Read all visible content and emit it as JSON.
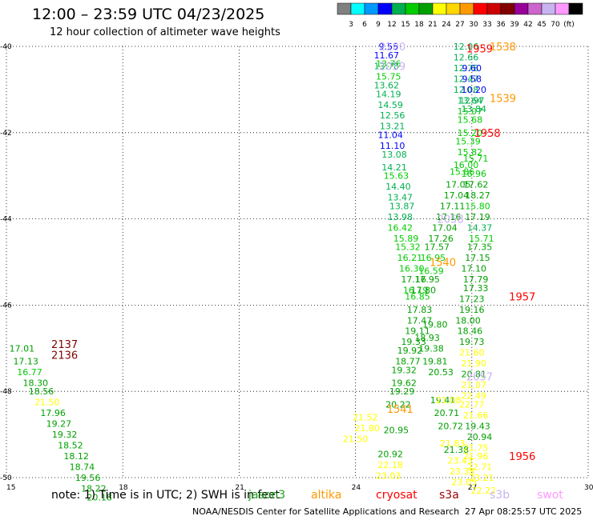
{
  "title": "12:00 – 23:59 UTC 04/23/2025",
  "subtitle": "12 hour collection of altimeter wave heights",
  "note": "note:  1) Time is in UTC; 2) SWH is in feet",
  "footer": {
    "center": "NOAA/NESDIS Center for Satellite Applications and Research",
    "stamp": "27 Apr 08:25:57 UTC 2025"
  },
  "missions": [
    {
      "name": "jason3",
      "label": "jason3",
      "color": "#1fa11f"
    },
    {
      "name": "altika",
      "label": "altika",
      "color": "#ff9900"
    },
    {
      "name": "cryosat",
      "label": "cryosat",
      "color": "#ff0000"
    },
    {
      "name": "s3a",
      "label": "s3a",
      "color": "#990000"
    },
    {
      "name": "s3b",
      "label": "s3b",
      "color": "#c8b4f0"
    },
    {
      "name": "swot",
      "label": "swot",
      "color": "#ff99ff"
    }
  ],
  "colorbar": {
    "colors": [
      "#808080",
      "#00ffff",
      "#0099ff",
      "#0000ff",
      "#00b050",
      "#00cc00",
      "#00a000",
      "#ffff00",
      "#ffd700",
      "#ff9900",
      "#ff0000",
      "#cc0000",
      "#800000",
      "#990099",
      "#cc66cc",
      "#c8b4f0",
      "#ff99ff",
      "#000000"
    ],
    "labels": [
      "3",
      "6",
      "9",
      "12",
      "15",
      "18",
      "21",
      "24",
      "27",
      "30",
      "33",
      "36",
      "39",
      "42",
      "45",
      "70",
      "(ft)"
    ]
  },
  "chart_data": {
    "type": "scatter",
    "title": "12:00 – 23:59 UTC 04/23/2025",
    "subtitle": "12 hour collection of altimeter wave heights",
    "xlim": [
      15,
      30
    ],
    "ylim": [
      -50,
      -40
    ],
    "x_ticks": [
      "15",
      "18",
      "21",
      "24",
      "27",
      "30"
    ],
    "y_ticks": [
      "-40",
      "-42",
      "-44",
      "-46",
      "-48",
      "-50"
    ],
    "grid": true,
    "points": [
      {
        "x": 24.85,
        "y": -40.0,
        "v": "9.55",
        "c": "#0000ff"
      },
      {
        "x": 24.8,
        "y": -40.2,
        "v": "11.67",
        "c": "#0000ff"
      },
      {
        "x": 24.85,
        "y": -40.4,
        "v": "13.76",
        "c": "#00cc00"
      },
      {
        "x": 24.8,
        "y": -40.45,
        "v": "13.78",
        "c": "#00b050"
      },
      {
        "x": 24.85,
        "y": -40.7,
        "v": "15.75",
        "c": "#00cc00"
      },
      {
        "x": 24.8,
        "y": -40.9,
        "v": "13.62",
        "c": "#00b050"
      },
      {
        "x": 24.85,
        "y": -41.1,
        "v": "14.19",
        "c": "#00b050"
      },
      {
        "x": 24.9,
        "y": -41.35,
        "v": "14.59",
        "c": "#00b050"
      },
      {
        "x": 24.95,
        "y": -41.6,
        "v": "12.56",
        "c": "#00b050"
      },
      {
        "x": 24.95,
        "y": -41.85,
        "v": "13.21",
        "c": "#00b050"
      },
      {
        "x": 24.9,
        "y": -42.05,
        "v": "11.04",
        "c": "#0000ff"
      },
      {
        "x": 24.95,
        "y": -42.3,
        "v": "11.10",
        "c": "#0000ff"
      },
      {
        "x": 25.0,
        "y": -42.5,
        "v": "13.08",
        "c": "#00b050"
      },
      {
        "x": 25.0,
        "y": -42.8,
        "v": "14.21",
        "c": "#00b050"
      },
      {
        "x": 25.05,
        "y": -43.0,
        "v": "15.63",
        "c": "#00cc00"
      },
      {
        "x": 25.1,
        "y": -43.25,
        "v": "14.40",
        "c": "#00b050"
      },
      {
        "x": 25.15,
        "y": -43.5,
        "v": "13.47",
        "c": "#00b050"
      },
      {
        "x": 25.2,
        "y": -43.7,
        "v": "13.87",
        "c": "#00b050"
      },
      {
        "x": 25.15,
        "y": -43.95,
        "v": "13.98",
        "c": "#00b050"
      },
      {
        "x": 25.15,
        "y": -44.2,
        "v": "16.42",
        "c": "#00cc00"
      },
      {
        "x": 25.3,
        "y": -44.45,
        "v": "15.89",
        "c": "#00cc00"
      },
      {
        "x": 25.35,
        "y": -44.65,
        "v": "15.32",
        "c": "#00cc00"
      },
      {
        "x": 25.4,
        "y": -44.9,
        "v": "16.21",
        "c": "#00cc00"
      },
      {
        "x": 25.45,
        "y": -45.15,
        "v": "16.30",
        "c": "#00cc00"
      },
      {
        "x": 25.5,
        "y": -45.4,
        "v": "17.16",
        "c": "#00a000"
      },
      {
        "x": 25.55,
        "y": -45.65,
        "v": "16.19",
        "c": "#00cc00"
      },
      {
        "x": 25.6,
        "y": -45.8,
        "v": "16.85",
        "c": "#00cc00"
      },
      {
        "x": 25.65,
        "y": -46.1,
        "v": "17.83",
        "c": "#00a000"
      },
      {
        "x": 25.65,
        "y": -46.35,
        "v": "17.47",
        "c": "#00a000"
      },
      {
        "x": 25.6,
        "y": -46.6,
        "v": "19.11",
        "c": "#00a000"
      },
      {
        "x": 25.5,
        "y": -46.85,
        "v": "19.33",
        "c": "#00a000"
      },
      {
        "x": 25.4,
        "y": -47.05,
        "v": "19.92",
        "c": "#00a000"
      },
      {
        "x": 25.35,
        "y": -47.3,
        "v": "18.77",
        "c": "#00a000"
      },
      {
        "x": 25.25,
        "y": -47.5,
        "v": "19.32",
        "c": "#00a000"
      },
      {
        "x": 25.25,
        "y": -47.8,
        "v": "19.62",
        "c": "#00a000"
      },
      {
        "x": 25.2,
        "y": -48.0,
        "v": "19.29",
        "c": "#00a000"
      },
      {
        "x": 25.1,
        "y": -48.3,
        "v": "20.22",
        "c": "#00a000"
      },
      {
        "x": 25.05,
        "y": -48.9,
        "v": "20.95",
        "c": "#00a000"
      },
      {
        "x": 24.9,
        "y": -49.45,
        "v": "20.92",
        "c": "#00a000"
      },
      {
        "x": 24.9,
        "y": -49.7,
        "v": "22.18",
        "c": "#ffff00"
      },
      {
        "x": 24.85,
        "y": -49.95,
        "v": "23.03",
        "c": "#ffff00"
      },
      {
        "x": 26.05,
        "y": -46.45,
        "v": "19.80",
        "c": "#00a000"
      },
      {
        "x": 25.85,
        "y": -46.75,
        "v": "18.93",
        "c": "#00a000"
      },
      {
        "x": 25.95,
        "y": -47.0,
        "v": "19.38",
        "c": "#00a000"
      },
      {
        "x": 26.05,
        "y": -47.3,
        "v": "19.81",
        "c": "#00a000"
      },
      {
        "x": 26.2,
        "y": -47.55,
        "v": "20.53",
        "c": "#00a000"
      },
      {
        "x": 26.25,
        "y": -48.2,
        "v": "19.41",
        "c": "#00a000"
      },
      {
        "x": 26.35,
        "y": -48.5,
        "v": "20.71",
        "c": "#00a000"
      },
      {
        "x": 26.45,
        "y": -48.8,
        "v": "20.72",
        "c": "#00a000"
      },
      {
        "x": 26.6,
        "y": -49.35,
        "v": "21.38",
        "c": "#00a000"
      },
      {
        "x": 26.7,
        "y": -49.6,
        "v": "23.43",
        "c": "#ffff00"
      },
      {
        "x": 26.75,
        "y": -49.85,
        "v": "23.38",
        "c": "#ffff00"
      },
      {
        "x": 26.8,
        "y": -50.1,
        "v": "23.05",
        "c": "#ffff00"
      },
      {
        "x": 26.85,
        "y": -40.0,
        "v": "12.06",
        "c": "#00b050"
      },
      {
        "x": 26.85,
        "y": -40.25,
        "v": "12.66",
        "c": "#00b050"
      },
      {
        "x": 26.85,
        "y": -40.5,
        "v": "12.78",
        "c": "#00b050"
      },
      {
        "x": 26.85,
        "y": -40.75,
        "v": "12.47",
        "c": "#00b050"
      },
      {
        "x": 26.85,
        "y": -41.0,
        "v": "12.08",
        "c": "#00b050"
      },
      {
        "x": 26.95,
        "y": -41.25,
        "v": "13.64",
        "c": "#00b050"
      },
      {
        "x": 26.95,
        "y": -41.5,
        "v": "15.07",
        "c": "#00cc00"
      },
      {
        "x": 26.95,
        "y": -41.7,
        "v": "15.68",
        "c": "#00cc00"
      },
      {
        "x": 26.95,
        "y": -42.0,
        "v": "15.20",
        "c": "#00cc00"
      },
      {
        "x": 26.9,
        "y": -42.2,
        "v": "15.39",
        "c": "#00cc00"
      },
      {
        "x": 26.95,
        "y": -42.45,
        "v": "15.82",
        "c": "#00cc00"
      },
      {
        "x": 26.85,
        "y": -42.75,
        "v": "16.00",
        "c": "#00cc00"
      },
      {
        "x": 26.75,
        "y": -42.9,
        "v": "15.86",
        "c": "#00cc00"
      },
      {
        "x": 26.65,
        "y": -43.2,
        "v": "17.05",
        "c": "#00a000"
      },
      {
        "x": 26.6,
        "y": -43.45,
        "v": "17.04",
        "c": "#00a000"
      },
      {
        "x": 26.5,
        "y": -43.7,
        "v": "17.11",
        "c": "#00a000"
      },
      {
        "x": 26.4,
        "y": -43.95,
        "v": "17.16",
        "c": "#00a000"
      },
      {
        "x": 26.3,
        "y": -44.2,
        "v": "17.04",
        "c": "#00a000"
      },
      {
        "x": 26.2,
        "y": -44.45,
        "v": "17.26",
        "c": "#00a000"
      },
      {
        "x": 26.1,
        "y": -44.65,
        "v": "17.57",
        "c": "#00a000"
      },
      {
        "x": 26.0,
        "y": -44.9,
        "v": "16.95",
        "c": "#00cc00"
      },
      {
        "x": 25.95,
        "y": -45.2,
        "v": "16.59",
        "c": "#00cc00"
      },
      {
        "x": 25.85,
        "y": -45.4,
        "v": "17.95",
        "c": "#00a000"
      },
      {
        "x": 25.75,
        "y": -45.65,
        "v": "17.80",
        "c": "#00a000"
      },
      {
        "x": 27.0,
        "y": -40.5,
        "v": "9.60",
        "c": "#0000ff"
      },
      {
        "x": 27.0,
        "y": -40.75,
        "v": "9.58",
        "c": "#0000ff"
      },
      {
        "x": 27.05,
        "y": -41.0,
        "v": "10.20",
        "c": "#0000ff"
      },
      {
        "x": 27.0,
        "y": -41.25,
        "v": "12.97",
        "c": "#00b050"
      },
      {
        "x": 27.05,
        "y": -41.45,
        "v": "13.84",
        "c": "#00b050"
      },
      {
        "x": 27.1,
        "y": -42.6,
        "v": "15.71",
        "c": "#00cc00"
      },
      {
        "x": 27.05,
        "y": -42.95,
        "v": "16.96",
        "c": "#00cc00"
      },
      {
        "x": 27.1,
        "y": -43.2,
        "v": "17.62",
        "c": "#00a000"
      },
      {
        "x": 27.15,
        "y": -43.45,
        "v": "18.27",
        "c": "#00a000"
      },
      {
        "x": 27.15,
        "y": -43.7,
        "v": "15.80",
        "c": "#00cc00"
      },
      {
        "x": 27.15,
        "y": -43.95,
        "v": "17.19",
        "c": "#00a000"
      },
      {
        "x": 27.2,
        "y": -44.2,
        "v": "14.37",
        "c": "#00b050"
      },
      {
        "x": 27.25,
        "y": -44.45,
        "v": "15.71",
        "c": "#00cc00"
      },
      {
        "x": 27.2,
        "y": -44.65,
        "v": "17.35",
        "c": "#00a000"
      },
      {
        "x": 27.15,
        "y": -44.9,
        "v": "17.15",
        "c": "#00a000"
      },
      {
        "x": 27.05,
        "y": -45.15,
        "v": "17.10",
        "c": "#00a000"
      },
      {
        "x": 27.1,
        "y": -45.4,
        "v": "17.79",
        "c": "#00a000"
      },
      {
        "x": 27.1,
        "y": -45.6,
        "v": "17.33",
        "c": "#00a000"
      },
      {
        "x": 27.0,
        "y": -45.85,
        "v": "17.23",
        "c": "#00a000"
      },
      {
        "x": 27.0,
        "y": -46.1,
        "v": "19.16",
        "c": "#00a000"
      },
      {
        "x": 26.9,
        "y": -46.35,
        "v": "18.00",
        "c": "#00a000"
      },
      {
        "x": 26.95,
        "y": -46.6,
        "v": "18.46",
        "c": "#00a000"
      },
      {
        "x": 27.0,
        "y": -46.85,
        "v": "19.73",
        "c": "#00a000"
      },
      {
        "x": 27.0,
        "y": -47.1,
        "v": "21.60",
        "c": "#ffff00"
      },
      {
        "x": 27.05,
        "y": -47.35,
        "v": "21.90",
        "c": "#ffff00"
      },
      {
        "x": 27.05,
        "y": -47.6,
        "v": "20.81",
        "c": "#00a000"
      },
      {
        "x": 27.05,
        "y": -47.85,
        "v": "21.07",
        "c": "#ffff00"
      },
      {
        "x": 27.05,
        "y": -48.1,
        "v": "22.49",
        "c": "#ffff00"
      },
      {
        "x": 27.0,
        "y": -48.3,
        "v": "22.77",
        "c": "#ffff00"
      },
      {
        "x": 27.1,
        "y": -48.55,
        "v": "21.66",
        "c": "#ffff00"
      },
      {
        "x": 27.15,
        "y": -48.8,
        "v": "19.43",
        "c": "#00a000"
      },
      {
        "x": 27.2,
        "y": -49.05,
        "v": "20.94",
        "c": "#00a000"
      },
      {
        "x": 27.1,
        "y": -49.3,
        "v": "21.75",
        "c": "#ffff00"
      },
      {
        "x": 27.1,
        "y": -49.5,
        "v": "21.96",
        "c": "#ffff00"
      },
      {
        "x": 27.2,
        "y": -49.75,
        "v": "22.71",
        "c": "#ffff00"
      },
      {
        "x": 27.25,
        "y": -50.0,
        "v": "23.21",
        "c": "#ffff00"
      },
      {
        "x": 27.3,
        "y": -50.3,
        "v": "22.22",
        "c": "#ffff00"
      },
      {
        "x": 15.4,
        "y": -47.0,
        "v": "17.01",
        "c": "#00a000"
      },
      {
        "x": 15.5,
        "y": -47.3,
        "v": "17.13",
        "c": "#00a000"
      },
      {
        "x": 15.6,
        "y": -47.55,
        "v": "16.77",
        "c": "#00cc00"
      },
      {
        "x": 15.75,
        "y": -47.8,
        "v": "18.30",
        "c": "#00a000"
      },
      {
        "x": 15.9,
        "y": -48.0,
        "v": "18.56",
        "c": "#00a000"
      },
      {
        "x": 16.05,
        "y": -48.25,
        "v": "21.50",
        "c": "#ffff00"
      },
      {
        "x": 16.2,
        "y": -48.5,
        "v": "17.96",
        "c": "#00a000"
      },
      {
        "x": 16.35,
        "y": -48.75,
        "v": "19.27",
        "c": "#00a000"
      },
      {
        "x": 16.5,
        "y": -49.0,
        "v": "19.32",
        "c": "#00a000"
      },
      {
        "x": 16.65,
        "y": -49.25,
        "v": "18.52",
        "c": "#00a000"
      },
      {
        "x": 16.8,
        "y": -49.5,
        "v": "18.12",
        "c": "#00a000"
      },
      {
        "x": 16.95,
        "y": -49.75,
        "v": "18.74",
        "c": "#00a000"
      },
      {
        "x": 17.1,
        "y": -50.0,
        "v": "19.56",
        "c": "#00a000"
      },
      {
        "x": 17.25,
        "y": -50.25,
        "v": "18.22",
        "c": "#00a000"
      },
      {
        "x": 17.4,
        "y": -50.45,
        "v": "20.18",
        "c": "#00a000"
      },
      {
        "x": 24.0,
        "y": -49.1,
        "v": "21.50",
        "c": "#ffff00"
      },
      {
        "x": 24.25,
        "y": -48.6,
        "v": "21.52",
        "c": "#ffff00"
      },
      {
        "x": 24.3,
        "y": -48.85,
        "v": "21.80",
        "c": "#ffff00"
      },
      {
        "x": 26.5,
        "y": -49.2,
        "v": "21.83",
        "c": "#ffff00"
      },
      {
        "x": 26.4,
        "y": -48.2,
        "v": "21.08",
        "c": "#ffff00"
      }
    ],
    "pass_labels": [
      {
        "x": 24.95,
        "y": -40.0,
        "v": "2100",
        "c": "#c8b4f0"
      },
      {
        "x": 24.95,
        "y": -40.45,
        "v": "2059",
        "c": "#c8b4f0"
      },
      {
        "x": 26.45,
        "y": -44.0,
        "v": "2058",
        "c": "#c8b4f0"
      },
      {
        "x": 27.2,
        "y": -47.65,
        "v": "2057",
        "c": "#c8b4f0"
      },
      {
        "x": 27.2,
        "y": -40.05,
        "v": "1959",
        "c": "#ff0000"
      },
      {
        "x": 27.4,
        "y": -42.0,
        "v": "1958",
        "c": "#ff0000"
      },
      {
        "x": 28.3,
        "y": -45.8,
        "v": "1957",
        "c": "#ff0000"
      },
      {
        "x": 28.3,
        "y": -49.5,
        "v": "1956",
        "c": "#ff0000"
      },
      {
        "x": 27.8,
        "y": -40.0,
        "v": "1538",
        "c": "#ff9900"
      },
      {
        "x": 27.8,
        "y": -41.2,
        "v": "1539",
        "c": "#ff9900"
      },
      {
        "x": 26.25,
        "y": -45.0,
        "v": "1540",
        "c": "#ff9900"
      },
      {
        "x": 25.15,
        "y": -48.4,
        "v": "1541",
        "c": "#ff9900"
      },
      {
        "x": 16.5,
        "y": -46.9,
        "v": "2137",
        "c": "#800000"
      },
      {
        "x": 16.5,
        "y": -47.15,
        "v": "2136",
        "c": "#800000"
      }
    ]
  }
}
